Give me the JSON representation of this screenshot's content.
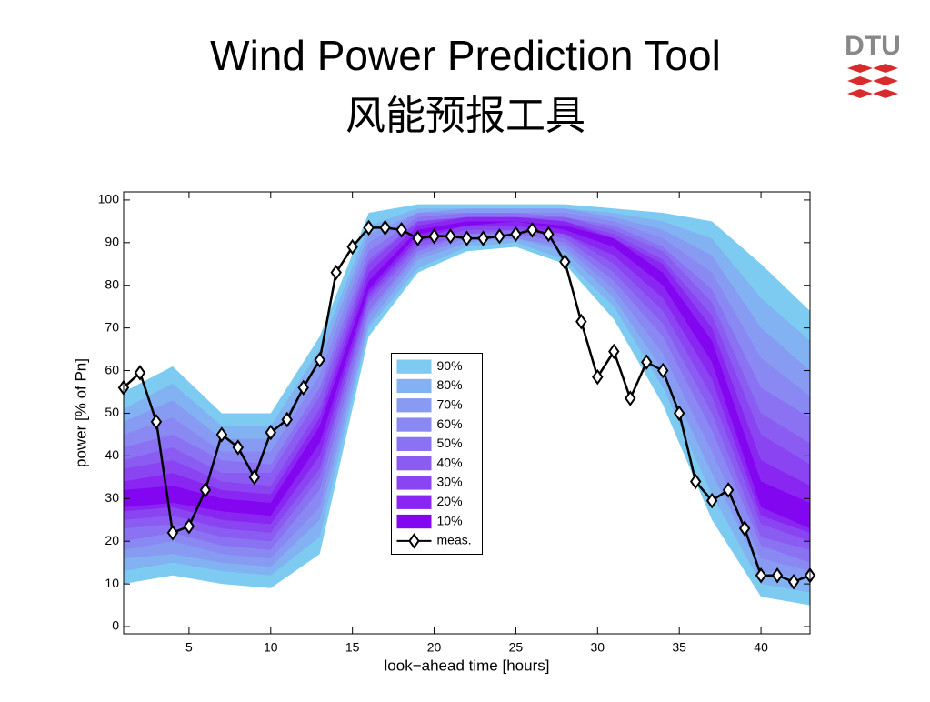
{
  "title": "Wind Power Prediction Tool",
  "subtitle": "风能预报工具",
  "logo": "DTU",
  "chart_data": {
    "type": "fan",
    "xlabel": "look−ahead time [hours]",
    "ylabel": "power [% of Pn]",
    "xlim": [
      1,
      43
    ],
    "ylim": [
      -1.7,
      101.9
    ],
    "xticks": [
      5,
      10,
      15,
      20,
      25,
      30,
      35,
      40
    ],
    "yticks": [
      0,
      10,
      20,
      30,
      40,
      50,
      60,
      70,
      80,
      90,
      100
    ],
    "legend": "center",
    "band_x": [
      1,
      4,
      7,
      10,
      13,
      16,
      19,
      22,
      25,
      28,
      31,
      34,
      37,
      40,
      43
    ],
    "bands": [
      {
        "name": "90%",
        "color": "#7ecbf2",
        "upper": [
          55,
          61,
          50,
          50,
          68,
          97,
          99,
          99,
          99,
          99,
          98,
          97,
          95,
          85,
          74
        ],
        "lower": [
          10,
          12,
          10,
          9,
          17,
          68,
          83,
          88,
          89,
          85,
          72,
          52,
          25,
          7,
          5
        ]
      },
      {
        "name": "80%",
        "color": "#82b2f2",
        "upper": [
          51,
          57,
          47,
          47,
          65,
          94,
          98,
          98,
          98,
          98,
          97,
          95,
          91,
          77,
          67
        ],
        "lower": [
          13,
          15,
          13,
          12,
          21,
          70,
          84,
          89,
          90,
          86,
          75,
          56,
          31,
          10,
          8
        ]
      },
      {
        "name": "70%",
        "color": "#879bf2",
        "upper": [
          48,
          53,
          44,
          44,
          62,
          92,
          97,
          98,
          98,
          98,
          96,
          93,
          87,
          70,
          60
        ],
        "lower": [
          16,
          17,
          15,
          14,
          25,
          71,
          86,
          90,
          91,
          88,
          77,
          60,
          36,
          13,
          11
        ]
      },
      {
        "name": "60%",
        "color": "#8a88f2",
        "upper": [
          45,
          49,
          41,
          41,
          59,
          90,
          97,
          97,
          97,
          97,
          95,
          91,
          83,
          63,
          54
        ],
        "lower": [
          18,
          20,
          17,
          16,
          28,
          73,
          87,
          91,
          91,
          89,
          79,
          64,
          41,
          16,
          13
        ]
      },
      {
        "name": "50%",
        "color": "#8a72f2",
        "upper": [
          42,
          45,
          39,
          38,
          56,
          88,
          96,
          97,
          97,
          96,
          94,
          89,
          79,
          56,
          49
        ],
        "lower": [
          20,
          22,
          19,
          18,
          32,
          74,
          88,
          92,
          92,
          90,
          81,
          68,
          46,
          19,
          15
        ]
      },
      {
        "name": "40%",
        "color": "#8a5cf2",
        "upper": [
          39,
          42,
          36,
          36,
          54,
          86,
          95,
          96,
          96,
          96,
          93,
          88,
          76,
          50,
          43
        ],
        "lower": [
          23,
          24,
          21,
          20,
          35,
          76,
          89,
          92,
          93,
          91,
          83,
          71,
          50,
          21,
          18
        ]
      },
      {
        "name": "30%",
        "color": "#8a44f2",
        "upper": [
          37,
          39,
          34,
          33,
          51,
          85,
          95,
          96,
          96,
          95,
          92,
          86,
          73,
          45,
          38
        ],
        "lower": [
          25,
          26,
          23,
          22,
          37,
          77,
          90,
          93,
          93,
          92,
          85,
          74,
          54,
          24,
          20
        ]
      },
      {
        "name": "20%",
        "color": "#8a26f2",
        "upper": [
          34,
          36,
          32,
          31,
          49,
          83,
          94,
          96,
          96,
          95,
          91,
          85,
          70,
          39,
          33
        ],
        "lower": [
          27,
          28,
          25,
          24,
          40,
          78,
          91,
          94,
          94,
          92,
          87,
          77,
          58,
          26,
          22
        ]
      },
      {
        "name": "10%",
        "color": "#8306f0",
        "upper": [
          32,
          33,
          30,
          29,
          47,
          81,
          93,
          95,
          95,
          94,
          91,
          83,
          67,
          34,
          29
        ],
        "lower": [
          28,
          29,
          27,
          26,
          43,
          79,
          92,
          94,
          95,
          93,
          89,
          80,
          62,
          28,
          23
        ]
      }
    ],
    "x": [
      1,
      2,
      3,
      4,
      5,
      6,
      7,
      8,
      9,
      10,
      11,
      12,
      13,
      14,
      15,
      16,
      17,
      18,
      19,
      20,
      21,
      22,
      23,
      24,
      25,
      26,
      27,
      28,
      29,
      30,
      31,
      32,
      33,
      34,
      35,
      36,
      37,
      38,
      39,
      40,
      41,
      42,
      43
    ],
    "series": [
      {
        "name": "meas.",
        "color": "#000000",
        "values": [
          56,
          59.5,
          48,
          22,
          23.5,
          32,
          45,
          42,
          35,
          45.5,
          48.5,
          56,
          62.5,
          83,
          89,
          93.5,
          93.5,
          93,
          91,
          91.5,
          91.5,
          91,
          91,
          91.5,
          92,
          93,
          92,
          85.5,
          71.5,
          58.5,
          64.5,
          53.5,
          62,
          60,
          50,
          34,
          29.5,
          32,
          23,
          12,
          12,
          10.5,
          12
        ]
      }
    ]
  }
}
